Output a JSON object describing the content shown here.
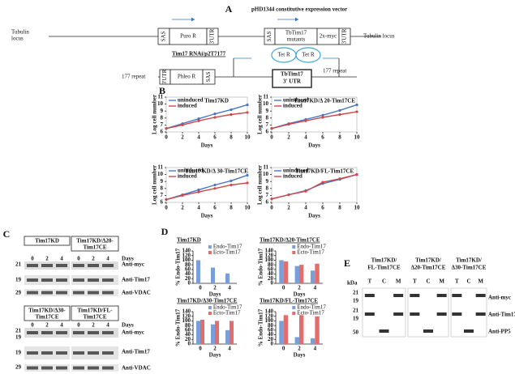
{
  "panel_a": {
    "label": "A",
    "vector_title": "pHD1344 constitutive expression vector",
    "locus_left": [
      "Tubulin",
      "locus"
    ],
    "locus_right": "Tubulin locus",
    "boxes": [
      "SAS",
      "Puro R",
      "3'UTR",
      "SAS",
      [
        "TbTim17",
        "mutants"
      ],
      "2x-myc",
      "3'UTR"
    ],
    "rnai_title": "Tim17 RNAi/p2T7177",
    "repeat_left": "177 repeat",
    "repeat_right": "177 repeat",
    "rnai_boxes": [
      "3'UTR",
      "Phleo R",
      "SAS",
      [
        "TbTim17",
        "3' UTR"
      ]
    ],
    "tet": [
      "Tet R",
      "Tet R"
    ]
  },
  "panel_b": {
    "label": "B"
  },
  "panel_c": {
    "label": "C",
    "top": {
      "titles": [
        [
          "Tim17KD"
        ],
        [
          "Tim17KD/Δ20-",
          "Tim17CE"
        ]
      ],
      "lanes": [
        [
          "0",
          "2",
          "4"
        ],
        [
          "0",
          "2",
          "4"
        ]
      ],
      "days": "Days",
      "markers": [
        "21",
        "19",
        "29"
      ],
      "antibodies": [
        "Anti-myc",
        "Anti-Tim17",
        "Anti-VDAC"
      ]
    },
    "bottom": {
      "titles": [
        [
          "Tim17KD/Δ30-",
          "Tim17CE"
        ],
        [
          "Tim17KD/FL-",
          "Tim17CE"
        ]
      ],
      "lanes": [
        [
          "0",
          "2",
          "4"
        ],
        [
          "0",
          "2",
          "4"
        ]
      ],
      "days": "Days",
      "markers": [
        "21",
        "19",
        "19",
        "29"
      ],
      "antibodies": [
        "Anti-myc",
        "Anti-Tim17",
        "Anti-VDAC"
      ]
    }
  },
  "panel_d": {
    "label": "D"
  },
  "panel_e": {
    "label": "E",
    "kda": "kDa",
    "titles": [
      [
        "Tim17KD/",
        "FL-Tim17CE"
      ],
      [
        "Tim17KD/",
        "Δ20-Tim17CE"
      ],
      [
        "Tim17KD/",
        "Δ30-Tim17CE"
      ]
    ],
    "lanes": [
      [
        "T",
        "C",
        "M"
      ],
      [
        "T",
        "C",
        "M"
      ],
      [
        "T",
        "C",
        "M"
      ]
    ],
    "markers": [
      "21",
      "19",
      "21",
      "19",
      "50"
    ],
    "antibodies": [
      "Anti-myc",
      "Anti-Tim17",
      "Anti-PP5"
    ]
  },
  "chart_data": [
    {
      "type": "line",
      "title": "Tim17KD",
      "xlabel": "Days",
      "ylabel": "Log cell number",
      "x": [
        0,
        2,
        4,
        6,
        8,
        10
      ],
      "xlim": [
        0,
        10
      ],
      "xticks": [
        0,
        2,
        4,
        6,
        8,
        10
      ],
      "ylim": [
        6,
        11
      ],
      "yticks": [
        6,
        7,
        8,
        9,
        10,
        11
      ],
      "series": [
        {
          "name": "uninduced",
          "color": "#4a76c4",
          "values": [
            6.5,
            7.2,
            7.9,
            8.6,
            9.2,
            9.9
          ]
        },
        {
          "name": "induced",
          "color": "#d0474a",
          "values": [
            6.5,
            7.0,
            7.6,
            8.1,
            8.5,
            8.8
          ]
        }
      ]
    },
    {
      "type": "line",
      "title": "Tim17KD/Δ 20-Tim17CE",
      "xlabel": "Days",
      "ylabel": "Log cell number",
      "x": [
        0,
        2,
        4,
        6,
        8,
        10
      ],
      "xlim": [
        0,
        10
      ],
      "xticks": [
        0,
        2,
        4,
        6,
        8,
        10
      ],
      "ylim": [
        6,
        11
      ],
      "yticks": [
        6,
        7,
        8,
        9,
        10,
        11
      ],
      "series": [
        {
          "name": "uninduced",
          "color": "#4a76c4",
          "values": [
            6.5,
            7.2,
            7.8,
            8.4,
            9.1,
            9.9
          ]
        },
        {
          "name": "induced",
          "color": "#d0474a",
          "values": [
            6.5,
            7.1,
            7.6,
            8.1,
            8.5,
            8.9
          ]
        }
      ]
    },
    {
      "type": "line",
      "title": "Tim17 KD/Δ 30-Tim17CE",
      "xlabel": "Days",
      "ylabel": "Log cell number",
      "x": [
        0,
        2,
        4,
        6,
        8,
        10
      ],
      "xlim": [
        0,
        10
      ],
      "xticks": [
        0,
        2,
        4,
        6,
        8,
        10
      ],
      "ylim": [
        6,
        11
      ],
      "yticks": [
        6,
        7,
        8,
        9,
        10,
        11
      ],
      "series": [
        {
          "name": "uninduced",
          "color": "#4a76c4",
          "values": [
            6.4,
            7.1,
            7.8,
            8.5,
            9.1,
            9.9
          ]
        },
        {
          "name": "induced",
          "color": "#d0474a",
          "values": [
            6.4,
            7.0,
            7.5,
            8.0,
            8.5,
            8.8
          ]
        }
      ]
    },
    {
      "type": "line",
      "title": "Tim17KD/FL-Tim17CE",
      "xlabel": "Days",
      "ylabel": "Log cell number",
      "x": [
        0,
        2,
        4,
        6,
        8,
        10
      ],
      "xlim": [
        0,
        10
      ],
      "xticks": [
        0,
        2,
        4,
        6,
        8,
        10
      ],
      "ylim": [
        6,
        11
      ],
      "yticks": [
        6,
        7,
        8,
        9,
        10,
        11
      ],
      "series": [
        {
          "name": "uninduced",
          "color": "#4a76c4",
          "values": [
            6.5,
            7.1,
            7.7,
            8.7,
            9.3,
            10.0
          ]
        },
        {
          "name": "induced",
          "color": "#d0474a",
          "values": [
            6.5,
            7.1,
            7.6,
            8.9,
            9.4,
            10.0
          ]
        }
      ]
    },
    {
      "type": "bar",
      "title": "Tim17KD",
      "xlabel": "Days",
      "ylabel": "% Endo-Tim17",
      "categories": [
        "0",
        "2",
        "4"
      ],
      "ylim": [
        0,
        140
      ],
      "yticks": [
        0,
        20,
        40,
        60,
        80,
        100,
        120,
        140
      ],
      "series": [
        {
          "name": "Endo-Tim17",
          "color": "#7a9fd8",
          "values": [
            100,
            68,
            43
          ]
        },
        {
          "name": "Ecto-Tim17",
          "color": "#e36c6c",
          "values": [
            null,
            null,
            null
          ]
        }
      ]
    },
    {
      "type": "bar",
      "title": "Tim17KD/Δ20-Tim17CE",
      "xlabel": "Days",
      "ylabel": "% Endo-Tim17",
      "categories": [
        "0",
        "2",
        "4"
      ],
      "ylim": [
        0,
        140
      ],
      "yticks": [
        0,
        20,
        40,
        60,
        80,
        100,
        120,
        140
      ],
      "series": [
        {
          "name": "Endo-Tim17",
          "color": "#7a9fd8",
          "values": [
            100,
            75,
            55
          ]
        },
        {
          "name": "Ecto-Tim17",
          "color": "#e36c6c",
          "values": [
            95,
            80,
            85
          ]
        }
      ]
    },
    {
      "type": "bar",
      "title": "Tim17KD/Δ30-Tim17CE",
      "xlabel": "Days",
      "ylabel": "% Endo-Tim17",
      "categories": [
        "0",
        "2",
        "4"
      ],
      "ylim": [
        0,
        140
      ],
      "yticks": [
        0,
        20,
        40,
        60,
        80,
        100,
        120,
        140
      ],
      "series": [
        {
          "name": "Endo-Tim17",
          "color": "#7a9fd8",
          "values": [
            100,
            85,
            60
          ]
        },
        {
          "name": "Ecto-Tim17",
          "color": "#e36c6c",
          "values": [
            105,
            100,
            100
          ]
        }
      ]
    },
    {
      "type": "bar",
      "title": "Tim17KD/FL-Tim17CE",
      "xlabel": "Days",
      "ylabel": "% Endo-Tim17",
      "categories": [
        "0",
        "2",
        "4"
      ],
      "ylim": [
        0,
        140
      ],
      "yticks": [
        0,
        20,
        40,
        60,
        80,
        100,
        120,
        140
      ],
      "series": [
        {
          "name": "Endo-Tim17",
          "color": "#7a9fd8",
          "values": [
            100,
            30,
            25
          ]
        },
        {
          "name": "Ecto-Tim17",
          "color": "#e36c6c",
          "values": [
            125,
            125,
            120
          ]
        }
      ]
    }
  ]
}
